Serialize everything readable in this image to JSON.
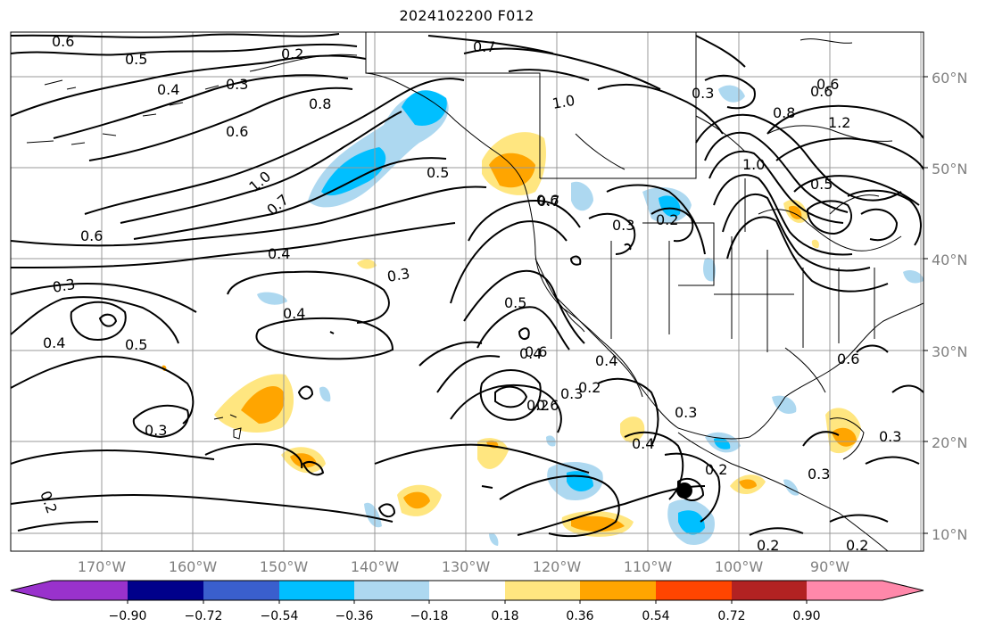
{
  "title": "2024102200 F012",
  "lat_labels": [
    "60°N",
    "50°N",
    "40°N",
    "30°N",
    "20°N",
    "10°N"
  ],
  "lon_labels": [
    "170°W",
    "160°W",
    "150°W",
    "140°W",
    "130°W",
    "120°W",
    "110°W",
    "100°W",
    "90°W"
  ],
  "colorbar": {
    "ticks": [
      "−0.90",
      "−0.72",
      "−0.54",
      "−0.36",
      "−0.18",
      "0.18",
      "0.36",
      "0.54",
      "0.72",
      "0.90"
    ],
    "colors": [
      "#9932cc",
      "#00008b",
      "#3a5fcd",
      "#00bfff",
      "#add8f0",
      "#ffffff",
      "#ffe680",
      "#ffa500",
      "#ff4500",
      "#b22222",
      "#ff88aa"
    ]
  },
  "contour_labels": [
    "0.6",
    "0.5",
    "0.4",
    "0.3",
    "0.2",
    "0.7",
    "1.0",
    "0.8",
    "0.5",
    "0.6",
    "0.3",
    "0.6",
    "0.8",
    "1.2",
    "1.0",
    "0.5",
    "1.0",
    "0.7",
    "0.6",
    "0.5",
    "0.4",
    "0.3",
    "0.4",
    "0.4",
    "0.5",
    "0.6",
    "0.3",
    "0.3",
    "0.6",
    "0.6",
    "0.4",
    "0.6",
    "0.3",
    "0.2",
    "0.3",
    "0.2",
    "0.2",
    "0.2",
    "0.3",
    "0.4",
    "0.3",
    "0.2",
    "0.3",
    "0.6",
    "0.4",
    "0.7",
    "0.2",
    "0.2"
  ]
}
